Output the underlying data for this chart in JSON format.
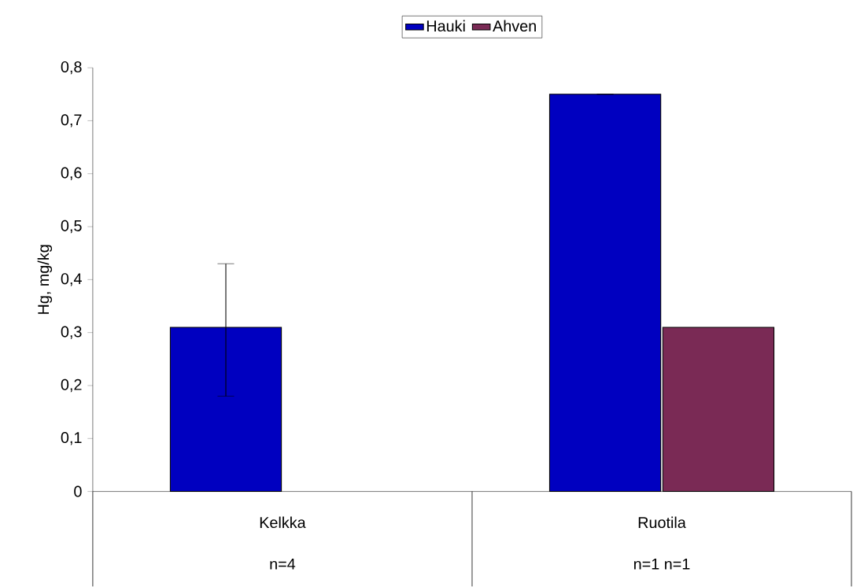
{
  "chart_data": {
    "type": "bar",
    "ylabel": "Hg, mg/kg",
    "categories": [
      "Kelkka",
      "Ruotila"
    ],
    "series": [
      {
        "name": "Hauki",
        "color": "#0000c0",
        "values": [
          0.31,
          0.75
        ],
        "errors": [
          [
            0.18,
            0.43
          ],
          null
        ]
      },
      {
        "name": "Ahven",
        "color": "#7a2a55",
        "values": [
          null,
          0.31
        ]
      }
    ],
    "ylim": [
      0,
      0.8
    ],
    "yticks": [
      0,
      {
        "value": 0.1,
        "label": "0,1"
      },
      {
        "value": 0.2,
        "label": "0,2"
      },
      {
        "value": 0.3,
        "label": "0,3"
      },
      {
        "value": 0.4,
        "label": "0,4"
      },
      {
        "value": 0.5,
        "label": "0,5"
      },
      {
        "value": 0.6,
        "label": "0,6"
      },
      {
        "value": 0.7,
        "label": "0,7"
      },
      {
        "value": 0.8,
        "label": "0,8"
      }
    ],
    "annotations": [
      "n=4",
      "n=1   n=1"
    ],
    "legend": "top",
    "grid": false
  }
}
